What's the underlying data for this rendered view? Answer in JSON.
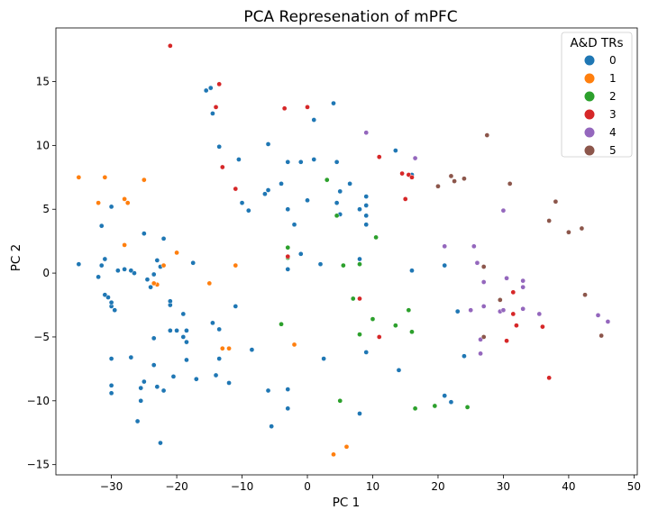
{
  "chart_data": {
    "type": "scatter",
    "title": "PCA Represenation of mPFC",
    "xlabel": "PC 1",
    "ylabel": "PC 2",
    "xlim": [
      -38.5,
      50.5
    ],
    "ylim": [
      -15.8,
      19.2
    ],
    "xticks": [
      -30,
      -20,
      -10,
      0,
      10,
      20,
      30,
      40,
      50
    ],
    "yticks": [
      -15,
      -10,
      -5,
      0,
      5,
      10,
      15
    ],
    "legend": {
      "title": "A&D TRs",
      "placement": "top-right",
      "entries": [
        "0",
        "1",
        "2",
        "3",
        "4",
        "5"
      ]
    },
    "colors": [
      "#1f77b4",
      "#ff7f0e",
      "#2ca02c",
      "#d62728",
      "#9467bd",
      "#8c564b"
    ],
    "series": [
      {
        "name": "0",
        "points": [
          [
            -15.5,
            14.3
          ],
          [
            -14.8,
            14.5
          ],
          [
            -14.5,
            12.5
          ],
          [
            -13.5,
            9.9
          ],
          [
            -10.5,
            8.9
          ],
          [
            -10,
            5.5
          ],
          [
            -9,
            4.9
          ],
          [
            -6.5,
            6.2
          ],
          [
            -6,
            10.1
          ],
          [
            -6,
            6.5
          ],
          [
            -4,
            7
          ],
          [
            -3,
            8.7
          ],
          [
            -3,
            5
          ],
          [
            -2,
            3.8
          ],
          [
            -1,
            8.7
          ],
          [
            0,
            5.7
          ],
          [
            1,
            8.9
          ],
          [
            1,
            12
          ],
          [
            -1,
            1.5
          ],
          [
            -3,
            0.3
          ],
          [
            2,
            0.7
          ],
          [
            4,
            13.3
          ],
          [
            4.5,
            8.7
          ],
          [
            4.5,
            5.5
          ],
          [
            5,
            6.4
          ],
          [
            5,
            4.6
          ],
          [
            6.5,
            7
          ],
          [
            8,
            5
          ],
          [
            9,
            3.8
          ],
          [
            9,
            5.3
          ],
          [
            9,
            6
          ],
          [
            9,
            4.5
          ],
          [
            8,
            1.1
          ],
          [
            13.5,
            9.6
          ],
          [
            16,
            7.7
          ],
          [
            16,
            0.2
          ],
          [
            21,
            0.6
          ],
          [
            23,
            -3
          ],
          [
            24,
            -6.5
          ],
          [
            21,
            -9.6
          ],
          [
            22,
            -10.1
          ],
          [
            14,
            -7.6
          ],
          [
            9,
            -6.2
          ],
          [
            8,
            -11
          ],
          [
            2.5,
            -6.7
          ],
          [
            -3,
            -9.1
          ],
          [
            -3,
            -10.6
          ],
          [
            -5.5,
            -12
          ],
          [
            -6,
            -9.2
          ],
          [
            -8.5,
            -6
          ],
          [
            -12,
            -8.6
          ],
          [
            -13.5,
            -6.7
          ],
          [
            -14,
            -8
          ],
          [
            -13.5,
            -4.4
          ],
          [
            -14.5,
            -3.9
          ],
          [
            -17,
            -8.3
          ],
          [
            -18.5,
            -4.5
          ],
          [
            -18.5,
            -6.8
          ],
          [
            -18.5,
            -5.4
          ],
          [
            -19,
            -3.2
          ],
          [
            -19,
            -5
          ],
          [
            -20,
            -4.5
          ],
          [
            -20.5,
            -8.1
          ],
          [
            -21,
            -4.5
          ],
          [
            -21,
            -2.5
          ],
          [
            -21,
            -2.2
          ],
          [
            -22,
            -9.2
          ],
          [
            -23,
            -8.9
          ],
          [
            -23.5,
            -5.1
          ],
          [
            -23.5,
            -7.2
          ],
          [
            -24,
            -1.1
          ],
          [
            -23.5,
            -0.1
          ],
          [
            -23,
            1
          ],
          [
            -22,
            2.7
          ],
          [
            -22.5,
            0.5
          ],
          [
            -24.5,
            -0.5
          ],
          [
            -25,
            3.1
          ],
          [
            -25,
            -8.5
          ],
          [
            -25.5,
            -10
          ],
          [
            -25.5,
            -9
          ],
          [
            -26,
            -11.6
          ],
          [
            -26.5,
            0
          ],
          [
            -27,
            0.2
          ],
          [
            -27,
            -6.6
          ],
          [
            -28,
            0.3
          ],
          [
            -29,
            0.2
          ],
          [
            -29.5,
            -2.9
          ],
          [
            -30,
            -2.6
          ],
          [
            -30,
            -2.3
          ],
          [
            -30,
            -8.8
          ],
          [
            -30,
            -9.4
          ],
          [
            -30,
            -6.7
          ],
          [
            -30,
            5.2
          ],
          [
            -30.5,
            -1.9
          ],
          [
            -31,
            -1.7
          ],
          [
            -31,
            1.1
          ],
          [
            -31.5,
            0.6
          ],
          [
            -32,
            -0.3
          ],
          [
            -31.5,
            3.7
          ],
          [
            -35,
            0.7
          ],
          [
            -17.5,
            0.8
          ],
          [
            -11,
            -2.6
          ],
          [
            -22.5,
            -13.3
          ]
        ]
      },
      {
        "name": "1",
        "points": [
          [
            -35,
            7.5
          ],
          [
            -32,
            5.5
          ],
          [
            -31,
            7.5
          ],
          [
            -28,
            5.8
          ],
          [
            -27.5,
            5.5
          ],
          [
            -28,
            2.2
          ],
          [
            -25,
            7.3
          ],
          [
            -23,
            -0.9
          ],
          [
            -23.5,
            -0.8
          ],
          [
            -22,
            0.6
          ],
          [
            -20,
            1.6
          ],
          [
            -15,
            -0.8
          ],
          [
            -11,
            0.6
          ],
          [
            -13,
            -5.9
          ],
          [
            -12,
            -5.9
          ],
          [
            -2,
            -5.6
          ],
          [
            4,
            -14.2
          ],
          [
            6,
            -13.6
          ]
        ]
      },
      {
        "name": "2",
        "points": [
          [
            3,
            7.3
          ],
          [
            4.5,
            4.5
          ],
          [
            -3,
            2
          ],
          [
            -3,
            1.2
          ],
          [
            5.5,
            0.6
          ],
          [
            8,
            0.7
          ],
          [
            10.5,
            2.8
          ],
          [
            7,
            -2
          ],
          [
            8,
            -4.8
          ],
          [
            10,
            -3.6
          ],
          [
            -4,
            -4
          ],
          [
            5,
            -10
          ],
          [
            13.5,
            -4.1
          ],
          [
            15.5,
            -2.9
          ],
          [
            16,
            -4.6
          ],
          [
            16.5,
            -10.6
          ],
          [
            19.5,
            -10.4
          ],
          [
            24.5,
            -10.5
          ]
        ]
      },
      {
        "name": "3",
        "points": [
          [
            -21,
            17.8
          ],
          [
            -13.5,
            14.8
          ],
          [
            -14,
            13
          ],
          [
            -13,
            8.3
          ],
          [
            -11,
            6.6
          ],
          [
            -3.5,
            12.9
          ],
          [
            0,
            13
          ],
          [
            -3,
            1.3
          ],
          [
            8,
            -2
          ],
          [
            11,
            -5
          ],
          [
            11,
            9.1
          ],
          [
            14.5,
            7.8
          ],
          [
            15,
            5.8
          ],
          [
            15.5,
            7.7
          ],
          [
            16,
            7.5
          ],
          [
            30.5,
            -5.3
          ],
          [
            31.5,
            -1.5
          ],
          [
            31.5,
            -3.2
          ],
          [
            32,
            -4.1
          ],
          [
            36,
            -4.2
          ],
          [
            37,
            -8.2
          ]
        ]
      },
      {
        "name": "4",
        "points": [
          [
            9,
            11
          ],
          [
            16.5,
            9
          ],
          [
            21,
            2.1
          ],
          [
            25.5,
            2.1
          ],
          [
            26,
            0.8
          ],
          [
            27,
            0.5
          ],
          [
            27,
            -0.7
          ],
          [
            25,
            -2.9
          ],
          [
            27,
            -2.6
          ],
          [
            26.5,
            -5.2
          ],
          [
            26.5,
            -6.3
          ],
          [
            29.5,
            -3
          ],
          [
            30,
            -2.9
          ],
          [
            30,
            4.9
          ],
          [
            30.5,
            -0.4
          ],
          [
            33,
            -0.6
          ],
          [
            33,
            -1.1
          ],
          [
            33,
            -2.8
          ],
          [
            35.5,
            -3.2
          ],
          [
            44.5,
            -3.3
          ],
          [
            46,
            -3.8
          ]
        ]
      },
      {
        "name": "5",
        "points": [
          [
            20,
            6.8
          ],
          [
            22,
            7.6
          ],
          [
            22.5,
            7.2
          ],
          [
            24,
            7.4
          ],
          [
            27,
            0.5
          ],
          [
            27,
            -5
          ],
          [
            27.5,
            10.8
          ],
          [
            29.5,
            -2.1
          ],
          [
            31,
            7
          ],
          [
            37,
            4.1
          ],
          [
            38,
            5.6
          ],
          [
            40,
            3.2
          ],
          [
            42,
            3.5
          ],
          [
            42.5,
            -1.7
          ],
          [
            45,
            -4.9
          ]
        ]
      }
    ]
  }
}
